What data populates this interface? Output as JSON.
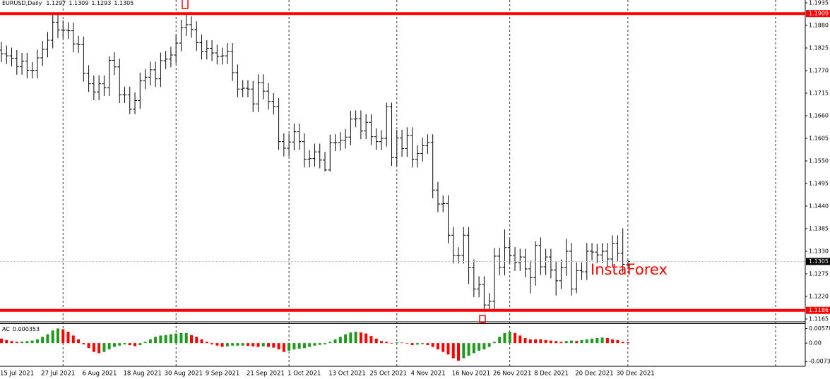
{
  "chart_data": [
    {
      "type": "ohlc",
      "title": "EURUSD,Daily",
      "color": "#000000",
      "categories": [
        "15 Jul 2021",
        null,
        null,
        null,
        null,
        null,
        null,
        null,
        "27 Jul 2021",
        null,
        null,
        null,
        null,
        null,
        null,
        null,
        "6 Aug 2021",
        null,
        null,
        null,
        null,
        null,
        null,
        null,
        "18 Aug 2021",
        null,
        null,
        null,
        null,
        null,
        null,
        null,
        "30 Aug 2021",
        null,
        null,
        null,
        null,
        null,
        null,
        null,
        "9 Sep 2021",
        null,
        null,
        null,
        null,
        null,
        null,
        null,
        "21 Sep 2021",
        null,
        null,
        null,
        null,
        null,
        null,
        null,
        "1 Oct 2021",
        null,
        null,
        null,
        null,
        null,
        null,
        null,
        "13 Oct 2021",
        null,
        null,
        null,
        null,
        null,
        null,
        null,
        "25 Oct 2021",
        null,
        null,
        null,
        null,
        null,
        null,
        null,
        "4 Nov 2021",
        null,
        null,
        null,
        null,
        null,
        null,
        null,
        "16 Nov 2021",
        null,
        null,
        null,
        null,
        null,
        null,
        null,
        "26 Nov 2021",
        null,
        null,
        null,
        null,
        null,
        null,
        null,
        "8 Dec 2021",
        null,
        null,
        null,
        null,
        null,
        null,
        null,
        "20 Dec 2021",
        null,
        null,
        null,
        null,
        null,
        null,
        null,
        "30 Dec 2021",
        null,
        null
      ],
      "open": [
        1.182,
        1.1811,
        1.1806,
        1.18,
        1.178,
        1.1793,
        1.1771,
        1.1771,
        1.1801,
        1.1822,
        1.1844,
        1.1888,
        1.1869,
        1.1868,
        1.1867,
        1.1835,
        1.1833,
        1.1763,
        1.1738,
        1.1718,
        1.1738,
        1.1728,
        1.1795,
        1.1779,
        1.1711,
        1.1711,
        1.1676,
        1.1697,
        1.1745,
        1.1754,
        1.1772,
        1.175,
        1.1794,
        1.1798,
        1.1808,
        1.1837,
        1.1874,
        1.1882,
        1.187,
        1.1838,
        1.1817,
        1.1824,
        1.1813,
        1.1805,
        1.1806,
        1.1817,
        1.1765,
        1.1725,
        1.1727,
        1.1725,
        1.1689,
        1.1741,
        1.172,
        1.1695,
        1.1683,
        1.1597,
        1.1581,
        1.1596,
        1.1621,
        1.1597,
        1.1554,
        1.1556,
        1.1572,
        1.1552,
        1.1528,
        1.1594,
        1.1595,
        1.16,
        1.1608,
        1.1652,
        1.1653,
        1.1623,
        1.1644,
        1.1609,
        1.1597,
        1.1605,
        1.1682,
        1.1558,
        1.1606,
        1.158,
        1.1612,
        1.1554,
        1.1568,
        1.1587,
        1.1595,
        1.1479,
        1.1445,
        1.1446,
        1.1369,
        1.132,
        1.132,
        1.1369,
        1.129,
        1.1238,
        1.1249,
        1.1199,
        1.1208,
        1.1318,
        1.1291,
        1.1339,
        1.132,
        1.1302,
        1.1316,
        1.1287,
        1.1266,
        1.1344,
        1.1292,
        1.1316,
        1.1284,
        1.1258,
        1.129,
        1.133,
        1.1238,
        1.1283,
        1.128,
        1.133,
        1.1328,
        1.1321,
        1.133,
        1.1311,
        1.1349,
        1.1325,
        1.1297
      ],
      "high": [
        1.184,
        1.1831,
        1.1826,
        1.182,
        1.1813,
        1.1813,
        1.1791,
        1.1821,
        1.1842,
        1.1864,
        1.1909,
        1.1908,
        1.1892,
        1.1888,
        1.1887,
        1.1855,
        1.1853,
        1.1783,
        1.1758,
        1.1758,
        1.1758,
        1.1805,
        1.1815,
        1.1799,
        1.1731,
        1.1731,
        1.1717,
        1.1765,
        1.1774,
        1.1792,
        1.1792,
        1.1814,
        1.1818,
        1.1828,
        1.1857,
        1.1894,
        1.1908,
        1.1902,
        1.189,
        1.1858,
        1.1844,
        1.1844,
        1.1833,
        1.1826,
        1.1837,
        1.1837,
        1.1785,
        1.1747,
        1.1747,
        1.1745,
        1.1761,
        1.1761,
        1.174,
        1.1715,
        1.1703,
        1.1617,
        1.1616,
        1.1641,
        1.1641,
        1.1617,
        1.1576,
        1.1592,
        1.1592,
        1.1572,
        1.1614,
        1.1615,
        1.162,
        1.1628,
        1.1672,
        1.1673,
        1.1673,
        1.1664,
        1.1664,
        1.1629,
        1.1625,
        1.1692,
        1.1692,
        1.1626,
        1.1626,
        1.1632,
        1.1632,
        1.1588,
        1.1607,
        1.1615,
        1.1615,
        1.1499,
        1.1466,
        1.1466,
        1.1389,
        1.134,
        1.1389,
        1.1389,
        1.131,
        1.1269,
        1.1269,
        1.1228,
        1.1338,
        1.1338,
        1.1383,
        1.1359,
        1.134,
        1.1336,
        1.1336,
        1.1307,
        1.1354,
        1.1364,
        1.1336,
        1.1336,
        1.1304,
        1.131,
        1.136,
        1.135,
        1.1303,
        1.1303,
        1.135,
        1.135,
        1.1348,
        1.135,
        1.135,
        1.1369,
        1.1369,
        1.1386,
        1.1309
      ],
      "low": [
        1.1791,
        1.1786,
        1.178,
        1.176,
        1.176,
        1.1751,
        1.1751,
        1.1751,
        1.1781,
        1.1802,
        1.1824,
        1.1849,
        1.1849,
        1.1847,
        1.1815,
        1.1813,
        1.1743,
        1.1718,
        1.1698,
        1.1698,
        1.1708,
        1.1708,
        1.1759,
        1.1691,
        1.1691,
        1.1664,
        1.1664,
        1.1677,
        1.1725,
        1.1734,
        1.173,
        1.173,
        1.1774,
        1.1778,
        1.1788,
        1.1817,
        1.1854,
        1.185,
        1.1818,
        1.1797,
        1.1797,
        1.1793,
        1.1785,
        1.1785,
        1.1786,
        1.1745,
        1.1705,
        1.1705,
        1.1705,
        1.1669,
        1.1669,
        1.17,
        1.1675,
        1.1663,
        1.1577,
        1.1561,
        1.1561,
        1.1576,
        1.1577,
        1.1534,
        1.1534,
        1.1536,
        1.1532,
        1.1524,
        1.1524,
        1.1574,
        1.1575,
        1.158,
        1.1588,
        1.1632,
        1.1603,
        1.1603,
        1.1589,
        1.1577,
        1.1577,
        1.1585,
        1.1538,
        1.1538,
        1.156,
        1.156,
        1.1534,
        1.1534,
        1.1548,
        1.1567,
        1.1459,
        1.1425,
        1.1425,
        1.1349,
        1.13,
        1.13,
        1.13,
        1.125,
        1.1218,
        1.1218,
        1.1186,
        1.1186,
        1.1188,
        1.1271,
        1.1271,
        1.13,
        1.1282,
        1.1282,
        1.1267,
        1.1227,
        1.1246,
        1.1272,
        1.1272,
        1.1264,
        1.1222,
        1.1238,
        1.127,
        1.1222,
        1.1228,
        1.126,
        1.126,
        1.1308,
        1.1301,
        1.1301,
        1.1291,
        1.1291,
        1.1305,
        1.1278,
        1.1293
      ],
      "close": [
        1.1811,
        1.1806,
        1.18,
        1.178,
        1.1793,
        1.1771,
        1.1771,
        1.1801,
        1.1822,
        1.1844,
        1.1888,
        1.1869,
        1.1868,
        1.1867,
        1.1835,
        1.1833,
        1.1763,
        1.1738,
        1.1718,
        1.1738,
        1.1728,
        1.1795,
        1.1779,
        1.1711,
        1.1711,
        1.1676,
        1.1697,
        1.1745,
        1.1754,
        1.1772,
        1.175,
        1.1794,
        1.1798,
        1.1808,
        1.1837,
        1.1874,
        1.1882,
        1.187,
        1.1838,
        1.1817,
        1.1824,
        1.1813,
        1.1805,
        1.1806,
        1.1817,
        1.1765,
        1.1725,
        1.1727,
        1.1725,
        1.1689,
        1.1741,
        1.172,
        1.1695,
        1.1683,
        1.1597,
        1.1581,
        1.1596,
        1.1621,
        1.1597,
        1.1554,
        1.1556,
        1.1572,
        1.1552,
        1.1528,
        1.1594,
        1.1595,
        1.16,
        1.1608,
        1.1652,
        1.1653,
        1.1623,
        1.1644,
        1.1609,
        1.1597,
        1.1605,
        1.1682,
        1.1558,
        1.1606,
        1.158,
        1.1612,
        1.1554,
        1.1568,
        1.1587,
        1.1595,
        1.1479,
        1.1445,
        1.1446,
        1.1369,
        1.132,
        1.132,
        1.1369,
        1.129,
        1.1238,
        1.1249,
        1.1199,
        1.1208,
        1.1318,
        1.1291,
        1.1339,
        1.132,
        1.1302,
        1.1316,
        1.1287,
        1.1266,
        1.1344,
        1.1292,
        1.1316,
        1.1284,
        1.1258,
        1.129,
        1.133,
        1.1238,
        1.1283,
        1.128,
        1.133,
        1.1328,
        1.1321,
        1.133,
        1.1311,
        1.1349,
        1.1325,
        1.1298,
        1.1305
      ],
      "ylim": [
        1.1158,
        1.1942
      ],
      "yticks": [
        1.1935,
        {
          "value": 1.188,
          "label": "1.1880"
        },
        1.1825,
        {
          "value": 1.177,
          "label": "1.1770"
        },
        1.1715,
        {
          "value": 1.166,
          "label": "1.1660"
        },
        1.1605,
        {
          "value": 1.155,
          "label": "1.1550"
        },
        1.1495,
        {
          "value": 1.144,
          "label": "1.1440"
        },
        1.1385,
        {
          "value": 1.133,
          "label": "1.1330"
        },
        1.1275,
        {
          "value": 1.122,
          "label": "1.1220"
        },
        1.1165
      ],
      "hlines": [
        {
          "value": 1.1909,
          "color": "#ff0000"
        },
        {
          "value": 1.1186,
          "color": "#ff0000"
        }
      ],
      "current_price_color": "#c0c0c0",
      "watermark": "InstaForex",
      "watermark_color": "#ff0000"
    },
    {
      "type": "bar",
      "title": "AC",
      "up_color": "#1f9a1f",
      "down_color": "#ff0000",
      "values": [
        0.0018,
        0.0012,
        0.0008,
        0.0005,
        0.0006,
        0.0008,
        0.001,
        0.0015,
        0.0025,
        0.0035,
        0.005,
        0.0058,
        0.0055,
        0.0045,
        0.003,
        0.0015,
        -0.0005,
        -0.002,
        -0.0035,
        -0.004,
        -0.0035,
        -0.0025,
        -0.0015,
        -0.001,
        -0.0005,
        -0.0008,
        -0.0012,
        -0.0008,
        0.0005,
        0.0015,
        0.0025,
        0.003,
        0.0032,
        0.0035,
        0.0038,
        0.004,
        0.004,
        0.0032,
        0.0025,
        0.0015,
        0.0005,
        -0.0005,
        -0.001,
        -0.0015,
        -0.0013,
        -0.001,
        -0.001,
        -0.001,
        -0.0011,
        -0.0013,
        -0.0015,
        -0.0013,
        -0.0015,
        -0.0018,
        -0.0025,
        -0.0035,
        -0.003,
        -0.0025,
        -0.0022,
        -0.002,
        -0.0015,
        -0.001,
        -0.0007,
        -0.0005,
        0.0005,
        0.0015,
        0.0025,
        0.0035,
        0.0042,
        0.0045,
        0.0042,
        0.0038,
        0.0028,
        0.0018,
        0.0008,
        0.0005,
        -0.0002,
        0.0003,
        0.0002,
        -0.0002,
        -0.0008,
        -0.0006,
        -0.0004,
        -0.0008,
        -0.0015,
        -0.0025,
        -0.0035,
        -0.0045,
        -0.006,
        -0.007,
        -0.006,
        -0.005,
        -0.004,
        -0.003,
        -0.0025,
        -0.0015,
        0.0005,
        0.0025,
        0.004,
        0.0045,
        0.004,
        0.003,
        0.002,
        0.0015,
        0.0015,
        0.0015,
        0.0012,
        0.001,
        0.0008,
        0.0005,
        0.0008,
        0.001,
        0.0008,
        0.0012,
        0.0015,
        0.0018,
        0.002,
        0.0022,
        0.002,
        0.0015,
        0.0012,
        0.0005,
        0.000353
      ],
      "ylim": [
        -0.0092,
        0.0076
      ],
      "yticks": [
        0.00578,
        {
          "value": 0,
          "label": "0.00"
        },
        {
          "value": -0.0073,
          "label": "-0.00730"
        }
      ]
    }
  ]
}
